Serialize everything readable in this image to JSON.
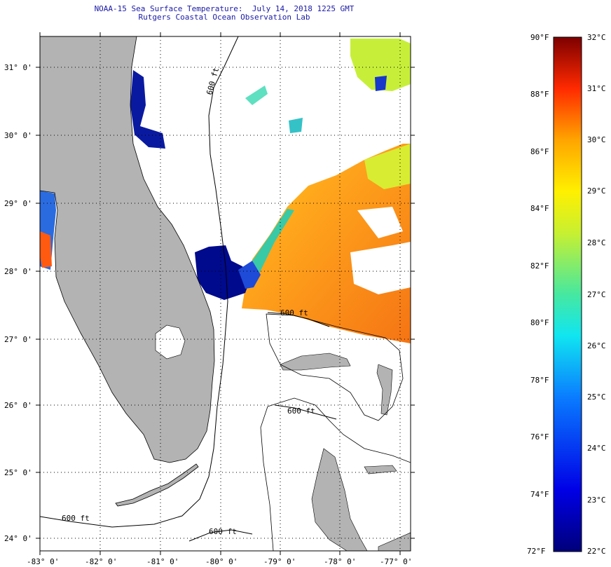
{
  "header": {
    "title": "NOAA-15 Sea Surface Temperature:  July 14, 2018 1225 GMT",
    "subtitle": "Rutgers Coastal Ocean Observation Lab"
  },
  "map": {
    "lat_labels": [
      "31° 0'",
      "30° 0'",
      "29° 0'",
      "28° 0'",
      "27° 0'",
      "26° 0'",
      "25° 0'",
      "24° 0'"
    ],
    "lon_labels": [
      "-83° 0'",
      "-82° 0'",
      "-81° 0'",
      "-80° 0'",
      "-79° 0'",
      "-78° 0'",
      "-77° 0'"
    ],
    "contour_label": "600 ft",
    "colors": {
      "land": "#b3b3b3",
      "cold": "#000080",
      "warm": "#ff9a1a"
    }
  },
  "colorbar": {
    "fahrenheit_labels": [
      "90°F",
      "88°F",
      "86°F",
      "84°F",
      "82°F",
      "80°F",
      "78°F",
      "76°F",
      "74°F",
      "72°F"
    ],
    "celsius_labels": [
      "32°C",
      "31°C",
      "30°C",
      "29°C",
      "28°C",
      "27°C",
      "26°C",
      "25°C",
      "24°C",
      "23°C",
      "22°C"
    ]
  }
}
